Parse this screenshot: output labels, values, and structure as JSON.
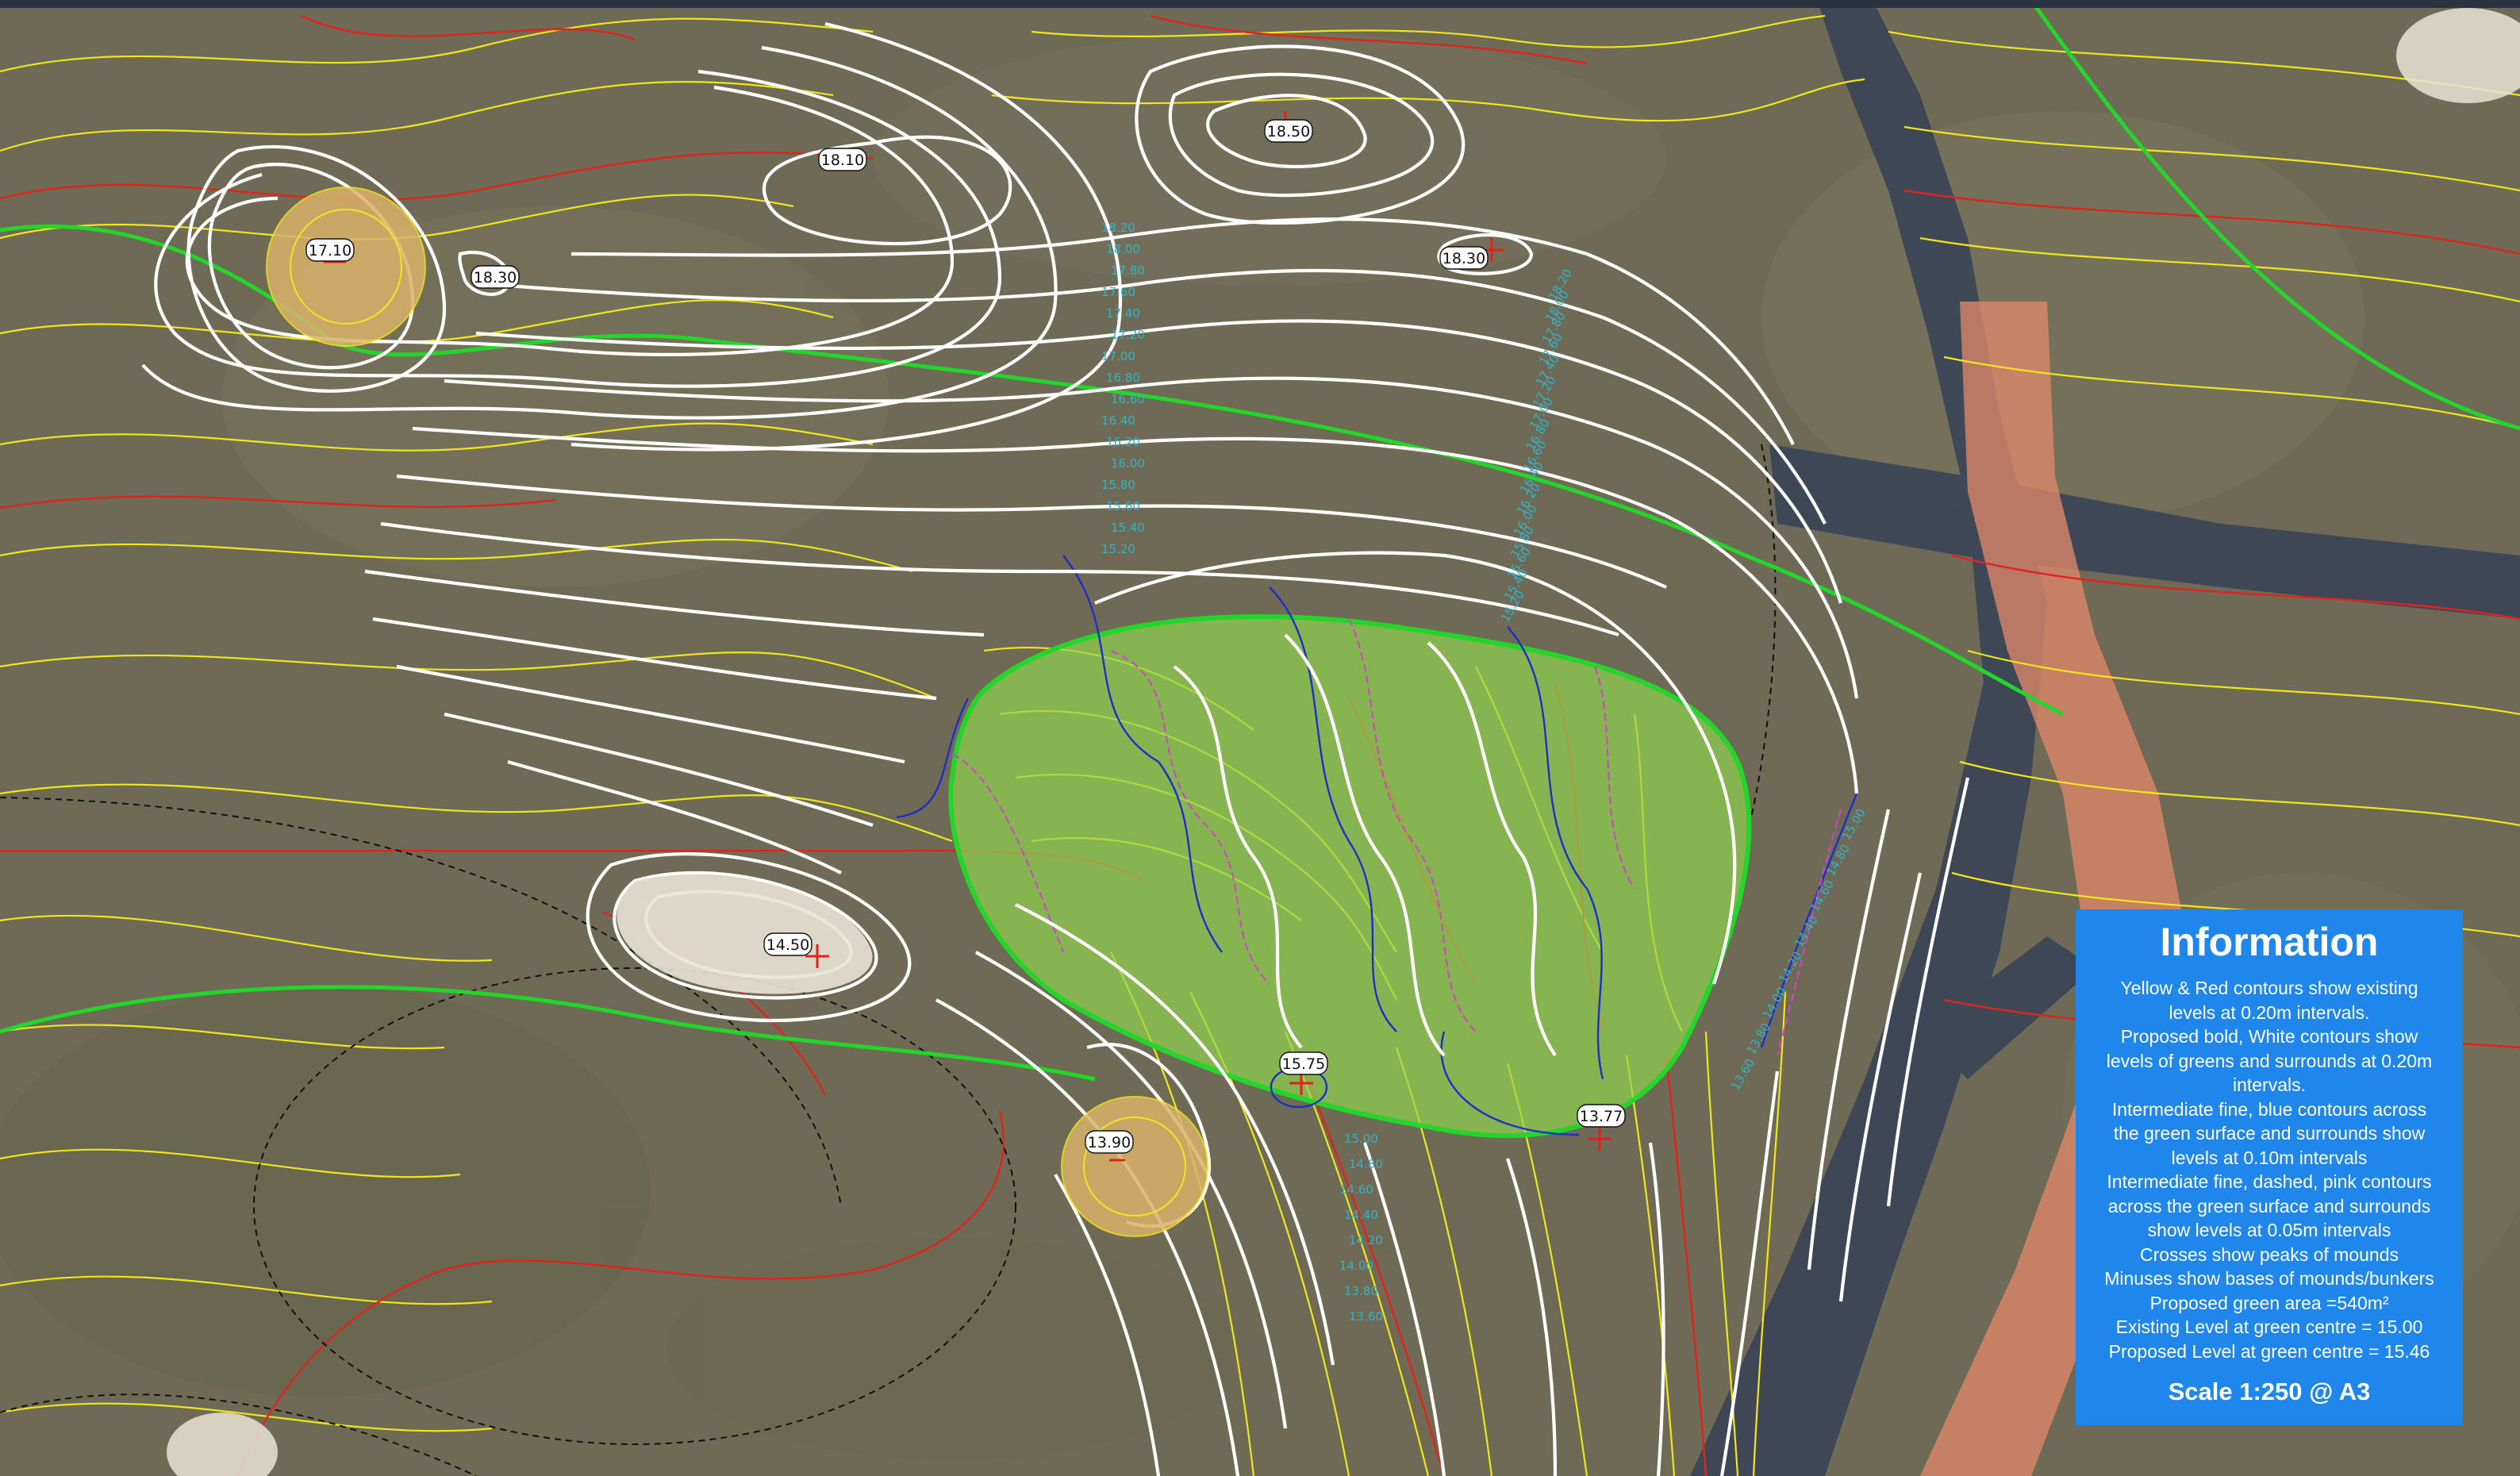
{
  "map": {
    "colors": {
      "ground": "#6f6a55",
      "existing_contour_yellow": "#f2e51b",
      "existing_contour_red": "#e3221b",
      "proposed_contour_white": "#ffffff",
      "fine_contour_blue": "#1c2fc9",
      "fine_contour_pink": "#d93fd1",
      "green_outline": "#22d62a",
      "green_fill": "#8fd44e",
      "path": "#3c4657",
      "pink_band": "#e38a6a",
      "bunker_sand": "#e9e3d5",
      "mound": "#d9b36b",
      "contour_label": "#2fb3c9"
    },
    "spot_levels": [
      {
        "name": "spot-18-50",
        "label": "18.50"
      },
      {
        "name": "spot-18-10",
        "label": "18.10"
      },
      {
        "name": "spot-17-10",
        "label": "17.10"
      },
      {
        "name": "spot-18-30-west",
        "label": "18.30"
      },
      {
        "name": "spot-18-30-east",
        "label": "18.30"
      },
      {
        "name": "spot-14-50",
        "label": "14.50"
      },
      {
        "name": "spot-15-75",
        "label": "15.75"
      },
      {
        "name": "spot-13-90",
        "label": "13.90"
      },
      {
        "name": "spot-13-77",
        "label": "13.77"
      }
    ],
    "contour_labels": [
      "18.20",
      "18.00",
      "17.80",
      "17.60",
      "17.40",
      "17.20",
      "17.00",
      "16.80",
      "16.60",
      "16.40",
      "16.20",
      "16.00",
      "15.80",
      "15.60",
      "15.40",
      "15.20",
      "15.00",
      "14.80",
      "14.60",
      "14.40",
      "14.20",
      "14.00",
      "13.80",
      "13.60"
    ]
  },
  "info": {
    "title": "Information",
    "lines": [
      "Yellow & Red contours show existing",
      "levels at 0.20m intervals.",
      "Proposed bold, White contours show",
      "levels of greens and surrounds at 0.20m",
      "intervals.",
      "Intermediate fine, blue contours across",
      "the green surface and surrounds show",
      "levels at 0.10m intervals",
      "Intermediate fine, dashed, pink contours",
      "across the green surface and surrounds",
      "show levels at 0.05m intervals",
      "Crosses show peaks of mounds",
      "Minuses show bases of mounds/bunkers",
      "Proposed green area =540m²",
      "Existing Level at green centre = 15.00",
      "Proposed Level at green centre = 15.46"
    ],
    "scale": "Scale 1:250 @ A3"
  }
}
